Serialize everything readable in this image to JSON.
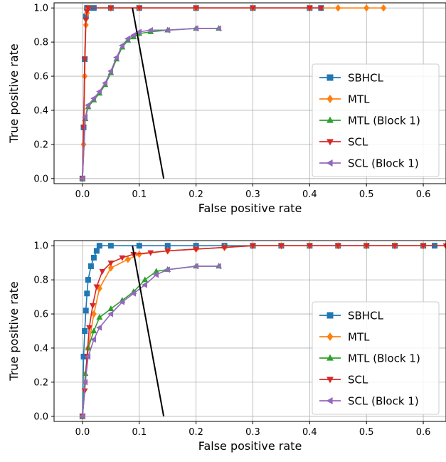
{
  "chart_data": [
    {
      "type": "line",
      "xlabel": "False positive rate",
      "ylabel": "True positive rate",
      "xlim": [
        -0.05,
        0.64
      ],
      "ylim": [
        -0.03,
        1.03
      ],
      "xticks": [
        "0.0",
        "0.1",
        "0.2",
        "0.3",
        "0.4",
        "0.5",
        "0.6"
      ],
      "yticks": [
        "0.0",
        "0.2",
        "0.4",
        "0.6",
        "0.8",
        "1.0"
      ],
      "grid": true,
      "legend_position": "lower-right",
      "series": [
        {
          "name": "SBHCL",
          "color": "#1f77b4",
          "marker": "square",
          "x": [
            0,
            0.002,
            0.004,
            0.006,
            0.008,
            0.01,
            0.02,
            0.05,
            0.1,
            0.2,
            0.3,
            0.4,
            0.42
          ],
          "y": [
            0,
            0.3,
            0.7,
            0.95,
            1.0,
            1.0,
            1.0,
            1.0,
            1.0,
            1.0,
            1.0,
            1.0,
            1.0
          ]
        },
        {
          "name": "MTL",
          "color": "#ff7f0e",
          "marker": "diamond",
          "x": [
            0,
            0.002,
            0.004,
            0.006,
            0.008,
            0.01,
            0.05,
            0.1,
            0.2,
            0.3,
            0.4,
            0.45,
            0.5,
            0.53
          ],
          "y": [
            0,
            0.2,
            0.6,
            0.9,
            0.97,
            1.0,
            1.0,
            1.0,
            1.0,
            1.0,
            1.0,
            1.0,
            1.0,
            1.0
          ]
        },
        {
          "name": "MTL (Block 1)",
          "color": "#2ca02c",
          "marker": "triangle-up",
          "x": [
            0,
            0.005,
            0.01,
            0.02,
            0.03,
            0.04,
            0.05,
            0.06,
            0.07,
            0.08,
            0.09,
            0.1,
            0.12,
            0.15,
            0.2,
            0.24
          ],
          "y": [
            0,
            0.35,
            0.42,
            0.46,
            0.5,
            0.55,
            0.62,
            0.7,
            0.77,
            0.81,
            0.83,
            0.85,
            0.86,
            0.87,
            0.88,
            0.88
          ]
        },
        {
          "name": "SCL",
          "color": "#d62728",
          "marker": "triangle-down",
          "x": [
            0,
            0.002,
            0.004,
            0.006,
            0.008,
            0.01,
            0.05,
            0.1,
            0.2,
            0.3,
            0.4,
            0.42
          ],
          "y": [
            0,
            0.3,
            0.7,
            0.93,
            0.98,
            1.0,
            1.0,
            1.0,
            1.0,
            1.0,
            1.0,
            1.0
          ]
        },
        {
          "name": "SCL (Block 1)",
          "color": "#9467bd",
          "marker": "triangle-left",
          "x": [
            0,
            0.005,
            0.01,
            0.02,
            0.03,
            0.04,
            0.05,
            0.06,
            0.07,
            0.08,
            0.09,
            0.1,
            0.12,
            0.15,
            0.2,
            0.24
          ],
          "y": [
            0,
            0.36,
            0.43,
            0.47,
            0.51,
            0.56,
            0.63,
            0.71,
            0.78,
            0.82,
            0.84,
            0.86,
            0.87,
            0.87,
            0.88,
            0.88
          ]
        },
        {
          "name": "",
          "color": "#000000",
          "marker": "none",
          "x": [
            0.088,
            0.143
          ],
          "y": [
            1.0,
            0.0
          ]
        }
      ]
    },
    {
      "type": "line",
      "xlabel": "False positive rate",
      "ylabel": "True positive rate",
      "xlim": [
        -0.05,
        0.64
      ],
      "ylim": [
        -0.03,
        1.03
      ],
      "xticks": [
        "0.0",
        "0.1",
        "0.2",
        "0.3",
        "0.4",
        "0.5",
        "0.6"
      ],
      "yticks": [
        "0.0",
        "0.2",
        "0.4",
        "0.6",
        "0.8",
        "1.0"
      ],
      "grid": true,
      "legend_position": "lower-right",
      "series": [
        {
          "name": "SBHCL",
          "color": "#1f77b4",
          "marker": "square",
          "x": [
            0,
            0.002,
            0.004,
            0.006,
            0.008,
            0.01,
            0.015,
            0.02,
            0.025,
            0.03,
            0.05,
            0.1,
            0.15,
            0.2,
            0.25,
            0.3,
            0.35,
            0.4,
            0.45,
            0.5,
            0.55,
            0.6,
            0.62
          ],
          "y": [
            0,
            0.35,
            0.5,
            0.62,
            0.72,
            0.8,
            0.88,
            0.93,
            0.97,
            1.0,
            1.0,
            1.0,
            1.0,
            1.0,
            1.0,
            1.0,
            1.0,
            1.0,
            1.0,
            1.0,
            1.0,
            1.0,
            1.0
          ]
        },
        {
          "name": "MTL",
          "color": "#ff7f0e",
          "marker": "diamond",
          "x": [
            0,
            0.005,
            0.01,
            0.02,
            0.03,
            0.05,
            0.08,
            0.1,
            0.15,
            0.2,
            0.25,
            0.3,
            0.35,
            0.4,
            0.45,
            0.5,
            0.55,
            0.6,
            0.64
          ],
          "y": [
            0,
            0.2,
            0.4,
            0.6,
            0.75,
            0.87,
            0.92,
            0.95,
            0.97,
            0.98,
            0.99,
            1.0,
            1.0,
            1.0,
            1.0,
            1.0,
            1.0,
            1.0,
            1.0
          ]
        },
        {
          "name": "MTL (Block 1)",
          "color": "#2ca02c",
          "marker": "triangle-up",
          "x": [
            0,
            0.005,
            0.01,
            0.02,
            0.03,
            0.05,
            0.07,
            0.09,
            0.11,
            0.13,
            0.15,
            0.2,
            0.24
          ],
          "y": [
            0,
            0.25,
            0.4,
            0.5,
            0.58,
            0.63,
            0.68,
            0.73,
            0.8,
            0.85,
            0.86,
            0.88,
            0.88
          ]
        },
        {
          "name": "SCL",
          "color": "#d62728",
          "marker": "triangle-down",
          "x": [
            0,
            0.004,
            0.008,
            0.012,
            0.018,
            0.025,
            0.035,
            0.05,
            0.07,
            0.09,
            0.12,
            0.15,
            0.2,
            0.25,
            0.3,
            0.35,
            0.4,
            0.45,
            0.5,
            0.55,
            0.6,
            0.64
          ],
          "y": [
            0,
            0.15,
            0.35,
            0.52,
            0.65,
            0.76,
            0.85,
            0.9,
            0.93,
            0.95,
            0.96,
            0.97,
            0.98,
            0.99,
            1.0,
            1.0,
            1.0,
            1.0,
            1.0,
            1.0,
            1.0,
            1.0
          ]
        },
        {
          "name": "SCL (Block 1)",
          "color": "#9467bd",
          "marker": "triangle-left",
          "x": [
            0,
            0.005,
            0.01,
            0.02,
            0.03,
            0.05,
            0.07,
            0.09,
            0.11,
            0.13,
            0.15,
            0.2,
            0.24
          ],
          "y": [
            0,
            0.2,
            0.35,
            0.45,
            0.52,
            0.6,
            0.67,
            0.72,
            0.77,
            0.83,
            0.86,
            0.88,
            0.88
          ]
        },
        {
          "name": "",
          "color": "#000000",
          "marker": "none",
          "x": [
            0.088,
            0.143
          ],
          "y": [
            1.0,
            0.0
          ]
        }
      ]
    }
  ]
}
